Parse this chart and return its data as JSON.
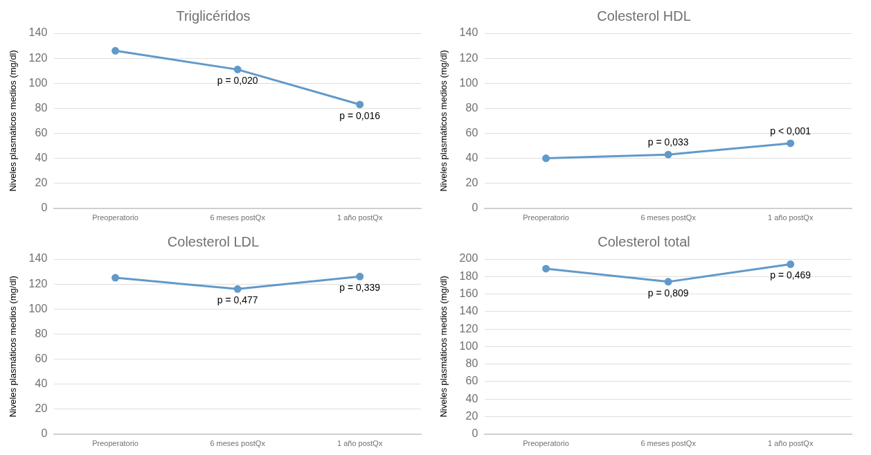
{
  "chart_data": [
    {
      "type": "line",
      "title": "Triglicéridos",
      "ylabel": "Niveles plasmáticos medios (mg/dl)",
      "categories": [
        "Preoperatorio",
        "6 meses postQx",
        "1 año postQx"
      ],
      "series": [
        {
          "color": "#6199c9",
          "values": [
            126,
            111,
            83
          ]
        }
      ],
      "ylim": [
        0,
        140
      ],
      "yticks": [
        0,
        20,
        40,
        60,
        80,
        100,
        120,
        140
      ],
      "grid": "y",
      "legend": false,
      "marker": "circle",
      "line_style": "solid",
      "annotations": [
        {
          "text": "p = 0,020",
          "x": "6 meses postQx",
          "y": 111
        },
        {
          "text": "p = 0,016",
          "x": "1 año postQx",
          "y": 83
        }
      ]
    },
    {
      "type": "line",
      "title": "Colesterol HDL",
      "ylabel": "Niveles plasmáticos medios (mg/dl)",
      "categories": [
        "Preoperatorio",
        "6 meses postQx",
        "1 año postQx"
      ],
      "series": [
        {
          "color": "#6199c9",
          "values": [
            40,
            43,
            52
          ]
        }
      ],
      "ylim": [
        0,
        140
      ],
      "yticks": [
        0,
        20,
        40,
        60,
        80,
        100,
        120,
        140
      ],
      "grid": "y",
      "legend": false,
      "marker": "circle",
      "line_style": "solid",
      "annotations": [
        {
          "text": "p = 0,033",
          "x": "6 meses postQx",
          "y": 43
        },
        {
          "text": "p < 0,001",
          "x": "1 año postQx",
          "y": 52
        }
      ]
    },
    {
      "type": "line",
      "title": "Colesterol LDL",
      "ylabel": "Niveles plasmáticos medios (mg/dl)",
      "categories": [
        "Preoperatorio",
        "6 meses postQx",
        "1 año postQx"
      ],
      "series": [
        {
          "color": "#6199c9",
          "values": [
            125,
            116,
            126
          ]
        }
      ],
      "ylim": [
        0,
        140
      ],
      "yticks": [
        0,
        20,
        40,
        60,
        80,
        100,
        120,
        140
      ],
      "grid": "y",
      "legend": false,
      "marker": "circle",
      "line_style": "solid",
      "annotations": [
        {
          "text": "p = 0,477",
          "x": "6 meses postQx",
          "y": 116
        },
        {
          "text": "p = 0,339",
          "x": "1 año postQx",
          "y": 126
        }
      ]
    },
    {
      "type": "line",
      "title": "Colesterol total",
      "ylabel": "Niveles plasmáticos medios (mg/dl)",
      "categories": [
        "Preoperatorio",
        "6 meses postQx",
        "1 año postQx"
      ],
      "series": [
        {
          "color": "#6199c9",
          "values": [
            189,
            174,
            194
          ]
        }
      ],
      "ylim": [
        0,
        200
      ],
      "yticks": [
        0,
        20,
        40,
        60,
        80,
        100,
        120,
        140,
        160,
        180,
        200
      ],
      "grid": "y",
      "legend": false,
      "marker": "circle",
      "line_style": "solid",
      "annotations": [
        {
          "text": "p = 0,809",
          "x": "6 meses postQx",
          "y": 174
        },
        {
          "text": "p = 0,469",
          "x": "1 año postQx",
          "y": 194
        }
      ]
    }
  ]
}
